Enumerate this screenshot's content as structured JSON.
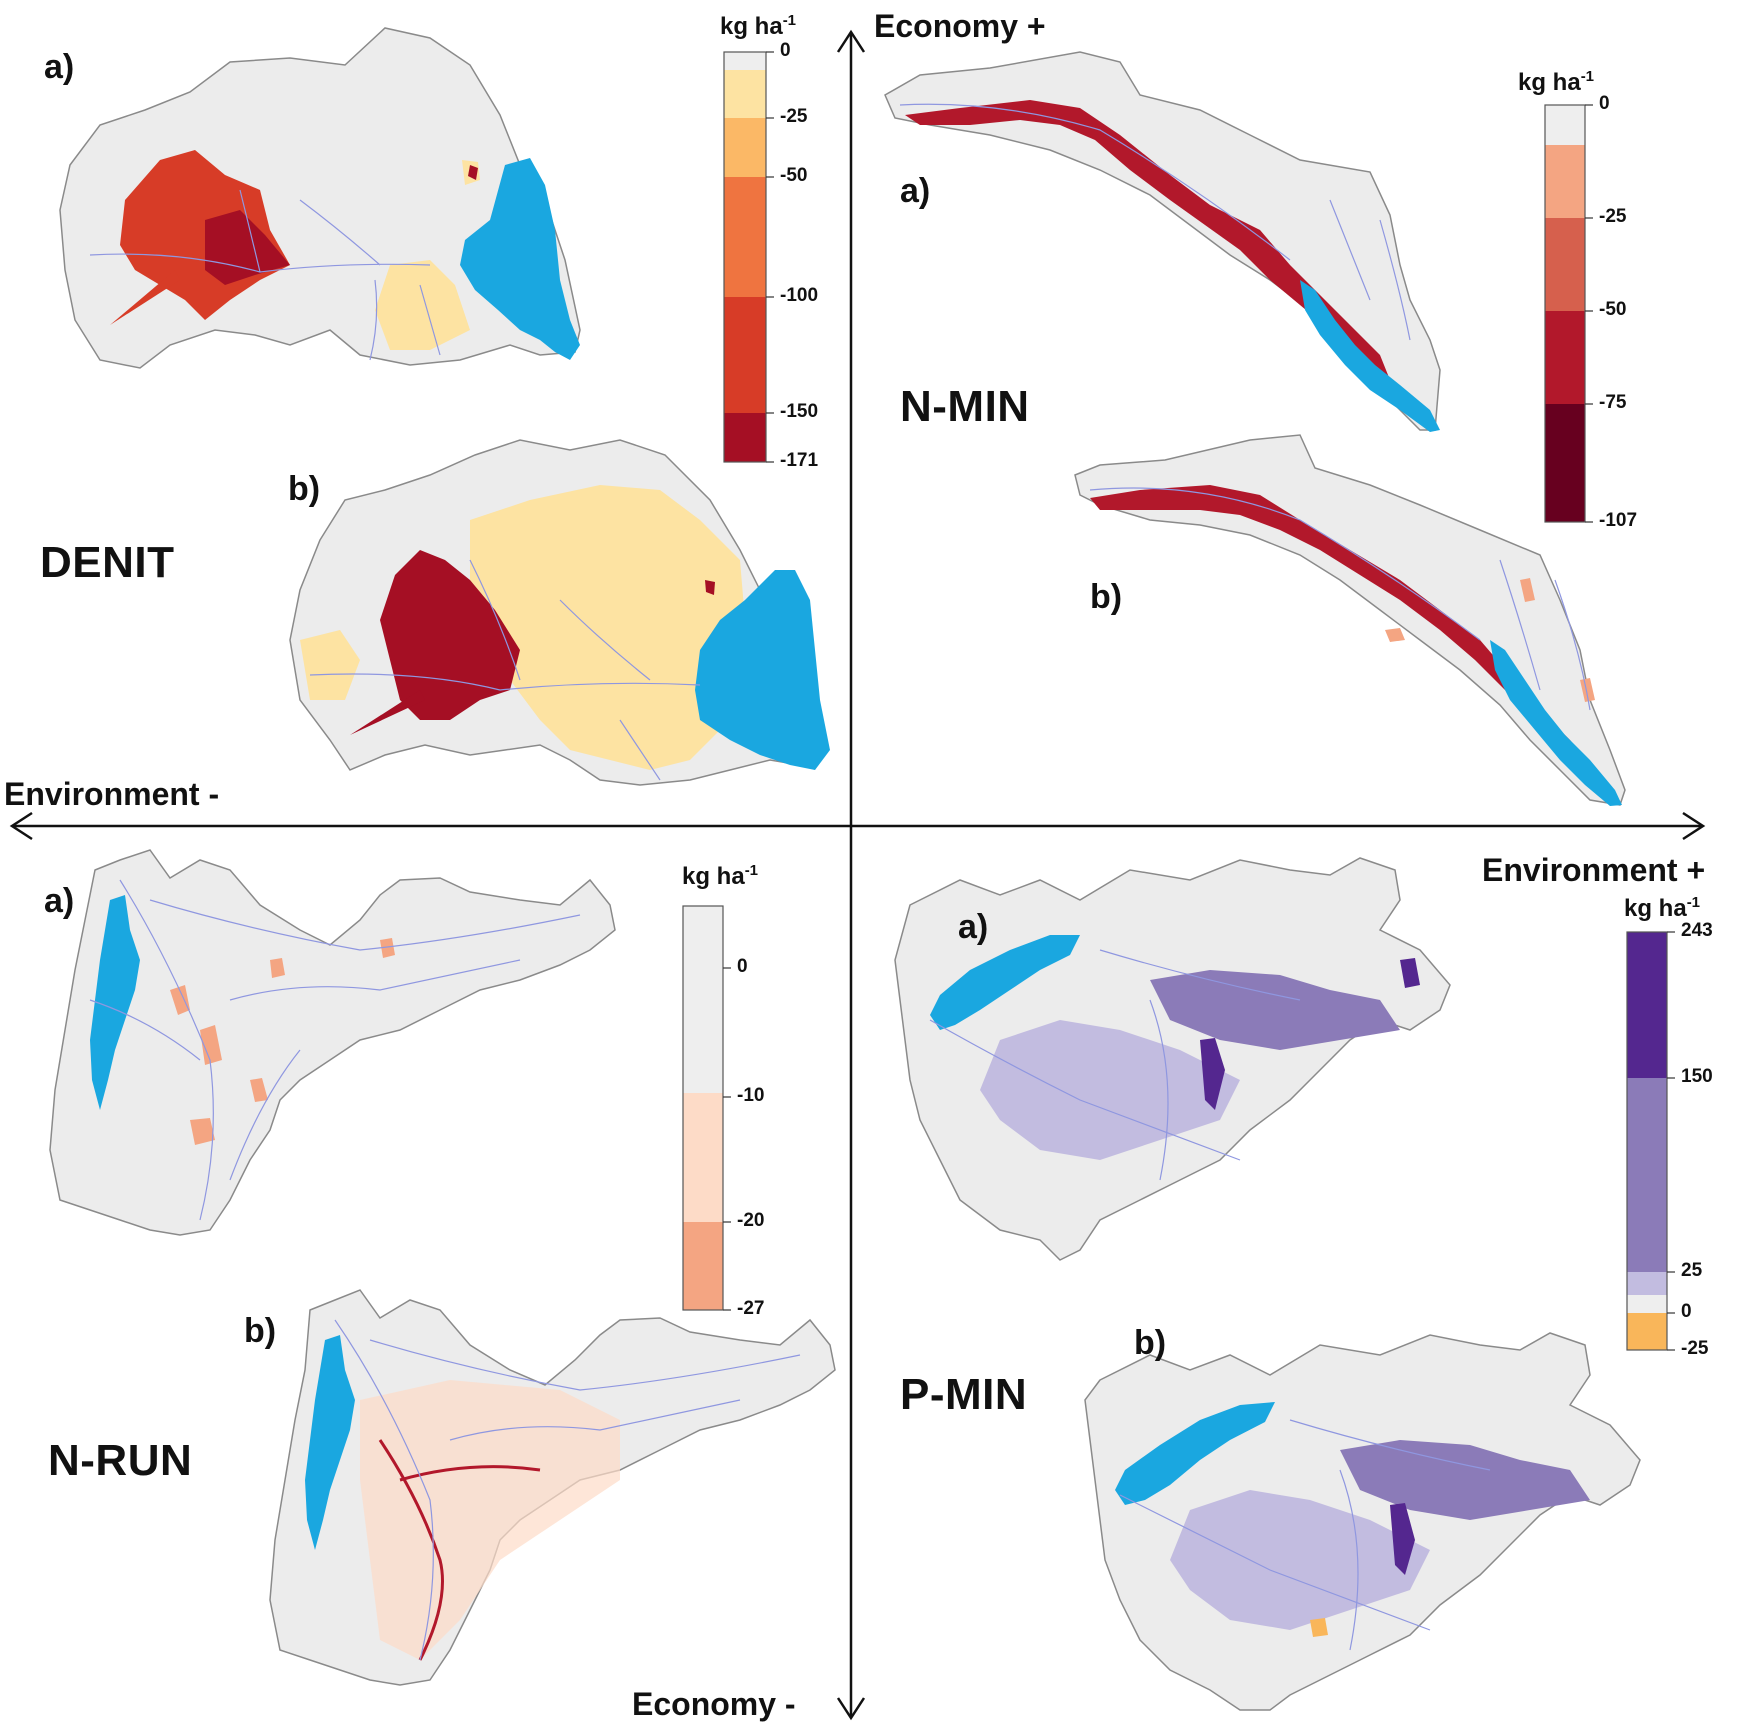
{
  "axes": {
    "economy_plus": "Economy +",
    "economy_minus": "Economy -",
    "environment_minus": "Environment -",
    "environment_plus": "Environment +"
  },
  "quadrants": {
    "denit": {
      "title": "DENIT",
      "panel_a": "a)",
      "panel_b": "b)",
      "legend": {
        "unit": "kg ha",
        "unit_exp": "-1",
        "ticks": [
          "0",
          "-25",
          "-50",
          "-100",
          "-150",
          "-171"
        ],
        "colors": [
          "#eeeeee",
          "#fde3a2",
          "#fbb866",
          "#ef7440",
          "#d73c27",
          "#a50f24"
        ]
      }
    },
    "nmin": {
      "title": "N-MIN",
      "panel_a": "a)",
      "panel_b": "b)",
      "legend": {
        "unit": "kg ha",
        "unit_exp": "-1",
        "ticks": [
          "0",
          "-25",
          "-50",
          "-75",
          "-107"
        ],
        "colors": [
          "#eeeeee",
          "#f4a582",
          "#d6604d",
          "#b2182b",
          "#67001f"
        ]
      }
    },
    "nrun": {
      "title": "N-RUN",
      "panel_a": "a)",
      "panel_b": "b)",
      "legend": {
        "unit": "kg ha",
        "unit_exp": "-1",
        "ticks": [
          "0",
          "-10",
          "-20",
          "-27"
        ],
        "colors": [
          "#eeeeee",
          "#fddbc7",
          "#f4a582",
          "#d6604d"
        ]
      }
    },
    "pmin": {
      "title": "P-MIN",
      "panel_a": "a)",
      "panel_b": "b)",
      "legend": {
        "unit": "kg ha",
        "unit_exp": "-1",
        "ticks": [
          "243",
          "150",
          "25",
          "0",
          "-25"
        ],
        "colors": [
          "#54278f",
          "#8b7bb8",
          "#c2bce0",
          "#eeeeee",
          "#f9b65a"
        ]
      }
    }
  },
  "map_colors": {
    "land": "#ececec",
    "border": "#8a8a8a",
    "water": "#1aa7e0",
    "rivers": "#8f97e0"
  }
}
